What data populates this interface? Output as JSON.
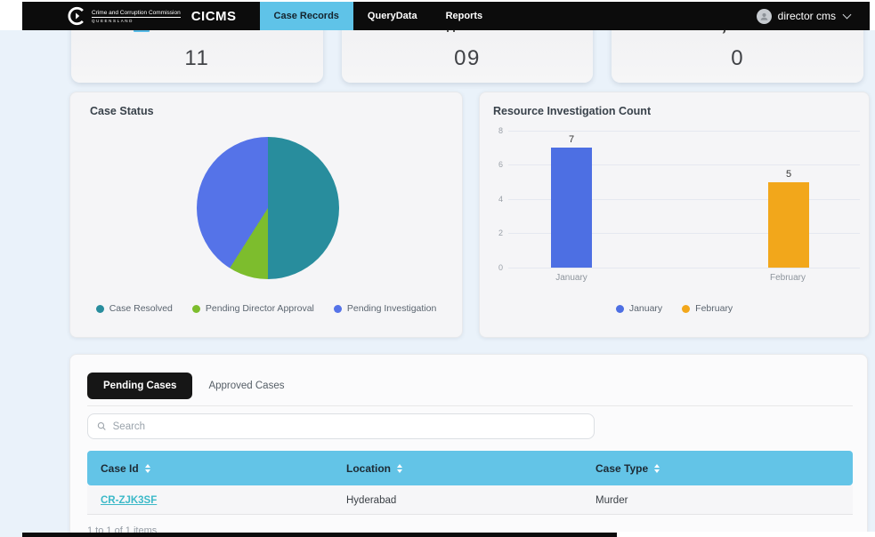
{
  "navbar": {
    "brand": {
      "org_line1": "Crime and Corruption Commission",
      "org_line2": "QUEENSLAND",
      "app_name": "CICMS"
    },
    "items": [
      {
        "label": "Case Records",
        "active": true
      },
      {
        "label": "QueryData",
        "active": false
      },
      {
        "label": "Reports",
        "active": false
      }
    ],
    "user": {
      "name": "director cms"
    },
    "active_tab_color": "#5FC3E8"
  },
  "stat_cards": [
    {
      "value": "11"
    },
    {
      "value": "09"
    },
    {
      "value": "0"
    }
  ],
  "chart_data": [
    {
      "type": "pie",
      "title": "Case Status",
      "labels": [
        "Case Resolved",
        "Pending Director Approval",
        "Pending Investigation"
      ],
      "values_pct": [
        50,
        9,
        41
      ],
      "colors": [
        "#288D9D",
        "#7DBD2D",
        "#5573E8"
      ],
      "legend_position": "bottom"
    },
    {
      "type": "bar",
      "title": "Resource Investigation Count",
      "categories": [
        "January",
        "February"
      ],
      "values": [
        7,
        5
      ],
      "data_labels": [
        "7",
        "5"
      ],
      "colors": [
        "#4D6FE3",
        "#F2A71B"
      ],
      "ylim": [
        0,
        8
      ],
      "yticks": [
        0,
        2,
        4,
        6,
        8
      ],
      "grid": true,
      "legend": [
        "January",
        "February"
      ],
      "legend_position": "bottom"
    }
  ],
  "cases_panel": {
    "tabs": [
      {
        "label": "Pending Cases",
        "active": true
      },
      {
        "label": "Approved Cases",
        "active": false
      }
    ],
    "search": {
      "placeholder": "Search"
    },
    "table": {
      "columns": [
        "Case Id",
        "Location",
        "Case Type"
      ],
      "rows": [
        {
          "case_id": "CR-ZJK3SF",
          "location": "Hyderabad",
          "case_type": "Murder"
        }
      ],
      "header_color": "#63C4E7",
      "link_color": "#3CB9C8"
    },
    "footer": "1 to 1 of 1 items"
  }
}
